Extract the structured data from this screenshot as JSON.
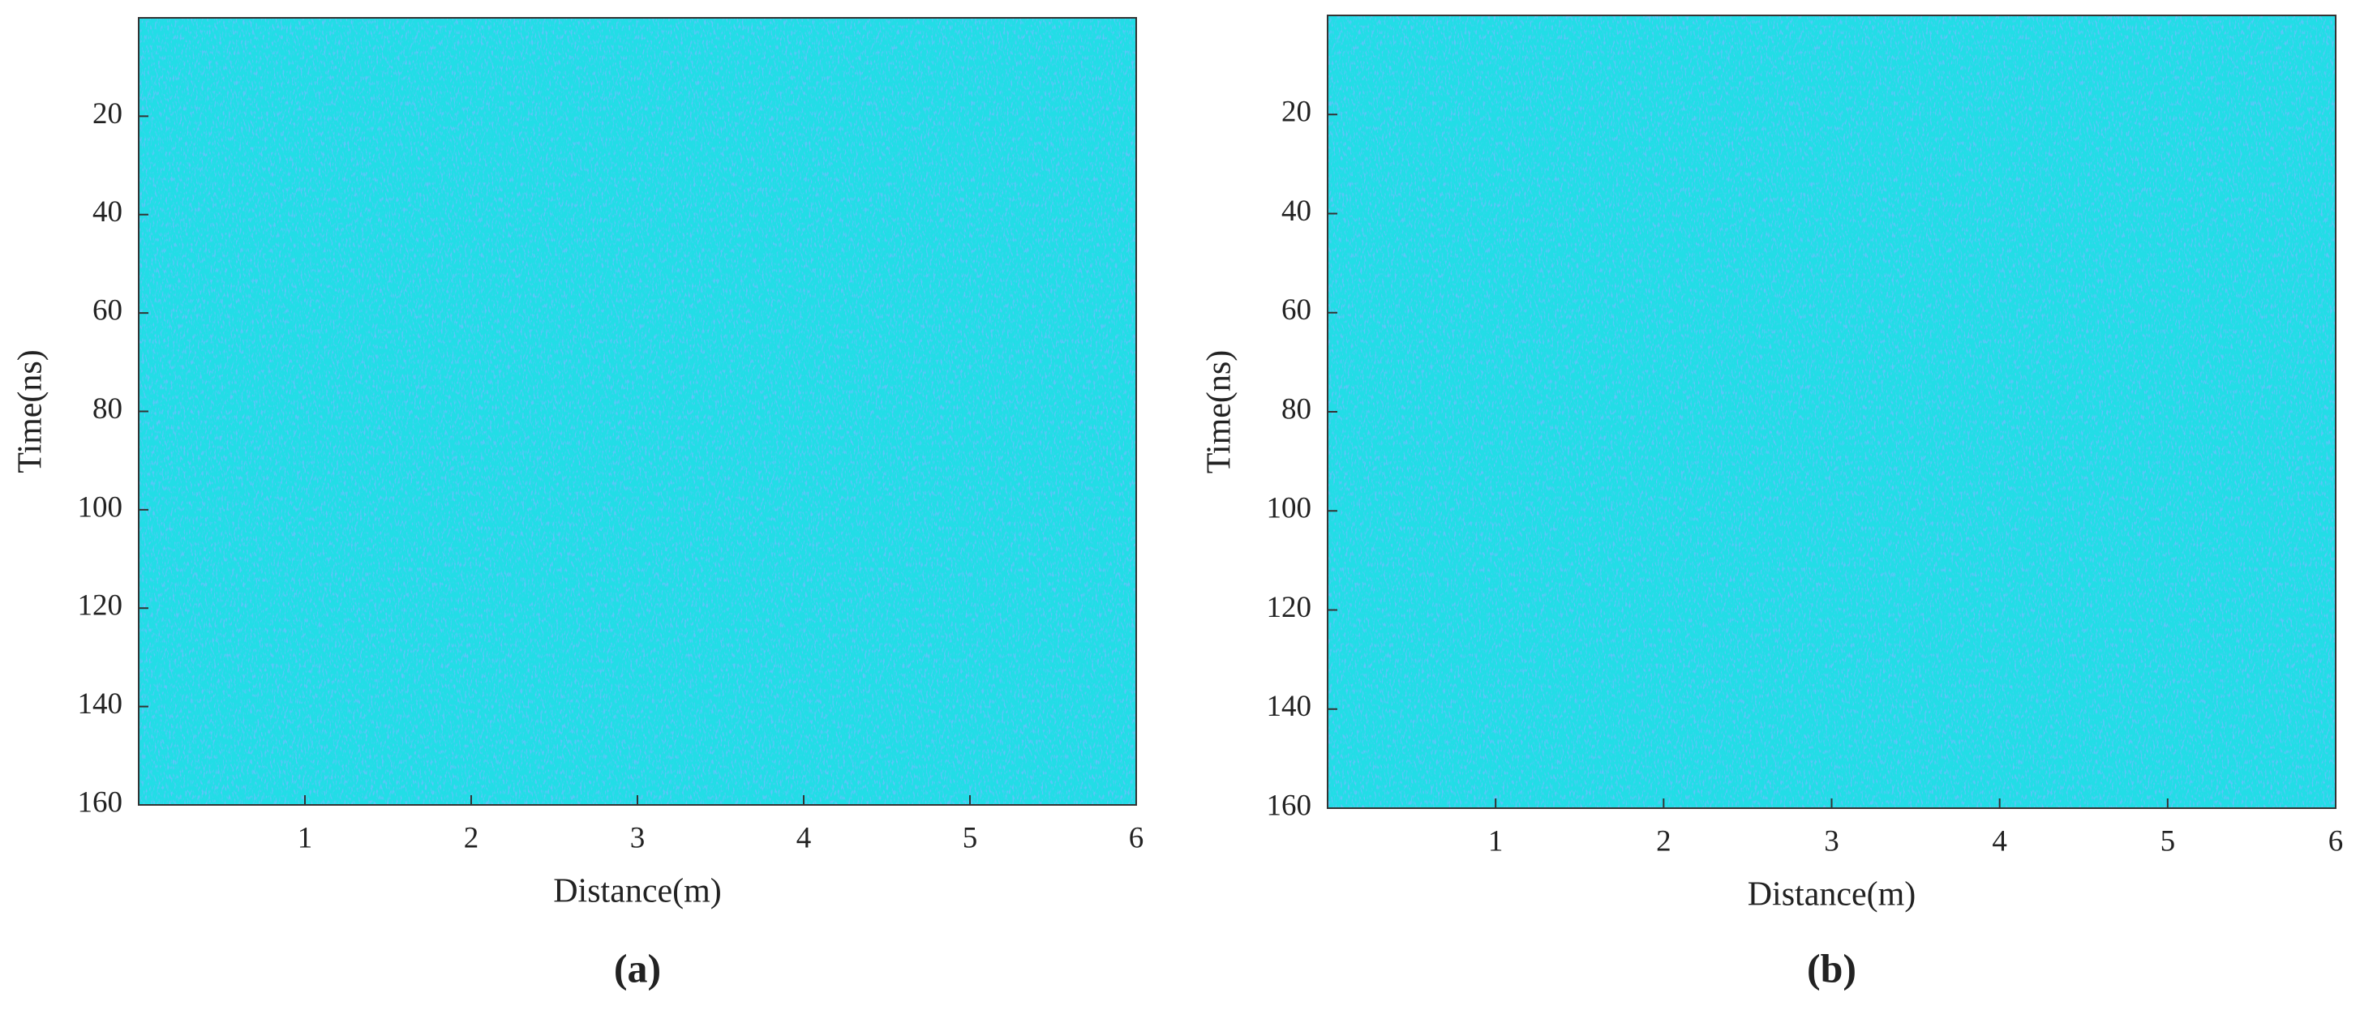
{
  "chart_data": [
    {
      "type": "heatmap",
      "subtitle": "(a)",
      "xlabel": "Distance(m)",
      "ylabel": "Time(ns)",
      "xlim": [
        0,
        6
      ],
      "xticks": [
        1,
        2,
        3,
        4,
        5,
        6
      ],
      "ylim": [
        0,
        160
      ],
      "yticks": [
        20,
        40,
        60,
        80,
        100,
        120,
        140,
        160
      ],
      "y_reversed": true,
      "color": "#22dde6"
    },
    {
      "type": "heatmap",
      "subtitle": "(b)",
      "xlabel": "Distance(m)",
      "ylabel": "Time(ns)",
      "xlim": [
        0,
        6
      ],
      "xticks": [
        1,
        2,
        3,
        4,
        5,
        6
      ],
      "ylim": [
        0,
        160
      ],
      "yticks": [
        20,
        40,
        60,
        80,
        100,
        120,
        140,
        160
      ],
      "y_reversed": true,
      "color": "#22dde6"
    }
  ]
}
